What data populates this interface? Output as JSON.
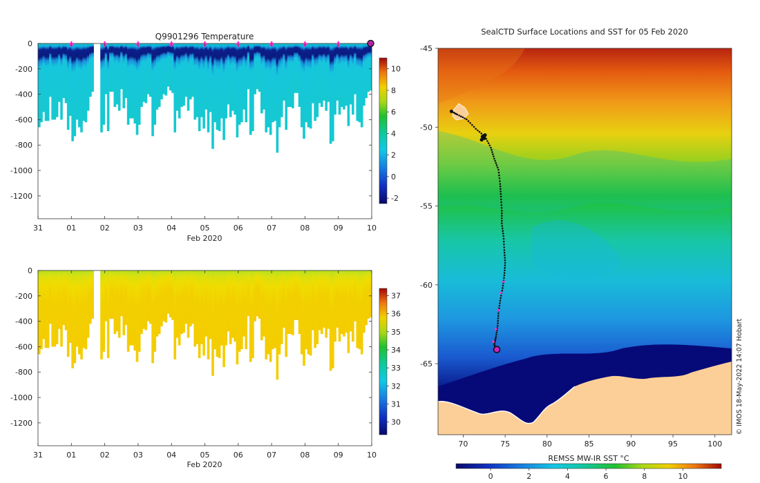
{
  "chart_data": [
    {
      "type": "heatmap",
      "id": "temperature_section",
      "title": "Q9901296  Temperature",
      "xlabel": "Feb 2020",
      "ylabel": "",
      "x_tick_labels": [
        "31",
        "01",
        "02",
        "03",
        "04",
        "05",
        "06",
        "07",
        "08",
        "09",
        "10"
      ],
      "x_range_days": [
        0,
        10
      ],
      "y_ticks": [
        0,
        -200,
        -400,
        -600,
        -800,
        -1000,
        -1200
      ],
      "ylim": [
        -1380,
        0
      ],
      "colorbar": {
        "ticks": [
          -2,
          0,
          2,
          4,
          6,
          8,
          10
        ],
        "range": [
          -2.5,
          11
        ]
      },
      "profile_depths": [
        -660,
        -620,
        -540,
        -610,
        -610,
        -420,
        -600,
        -600,
        -580,
        -460,
        -600,
        -430,
        -470,
        -680,
        -570,
        -770,
        -730,
        -600,
        -660,
        -700,
        -610,
        -620,
        -530,
        -420,
        -380,
        -410,
        -500,
        -410,
        -700,
        -640,
        -400,
        -690,
        -380,
        -380,
        -500,
        -480,
        -530,
        -360,
        -510,
        -430,
        -640,
        -590,
        -590,
        -630,
        -720,
        -640,
        -500,
        -460,
        -470,
        -400,
        -420,
        -730,
        -640,
        -520,
        -500,
        -440,
        -400,
        -410,
        -340,
        -370,
        -390,
        -700,
        -530,
        -590,
        -500,
        -490,
        -420,
        -530,
        -440,
        -420,
        -600,
        -580,
        -690,
        -580,
        -670,
        -520,
        -700,
        -540,
        -830,
        -620,
        -680,
        -690,
        -590,
        -760,
        -590,
        -480,
        -580,
        -530,
        -560,
        -740,
        -640,
        -620,
        -520,
        -620,
        -360,
        -720,
        -690,
        -400,
        -360,
        -380,
        -550,
        -520,
        -700,
        -660,
        -720,
        -620,
        -610,
        -860,
        -660,
        -580,
        -450,
        -680,
        -500,
        -500,
        -510,
        -390,
        -390,
        -500,
        -660,
        -750,
        -620,
        -660,
        -670,
        -470,
        -610,
        -580,
        -470,
        -500,
        -450,
        -530,
        -460,
        -790,
        -770,
        -560,
        -450,
        -560,
        -500,
        -520,
        -490,
        -650,
        -480,
        -560,
        -400,
        -610,
        -620,
        -660,
        -490,
        -430,
        -380,
        -370
      ],
      "gap_days": [
        [
          1.66,
          1.85
        ]
      ],
      "marker_days": [
        1,
        2,
        3,
        4,
        5,
        6,
        7,
        8,
        9
      ],
      "end_marker_day": 10
    },
    {
      "type": "heatmap",
      "id": "salinity_section",
      "title": "",
      "xlabel": "Feb 2020",
      "x_tick_labels": [
        "31",
        "01",
        "02",
        "03",
        "04",
        "05",
        "06",
        "07",
        "08",
        "09",
        "10"
      ],
      "y_ticks": [
        0,
        -200,
        -400,
        -600,
        -800,
        -1000,
        -1200
      ],
      "ylim": [
        -1380,
        0
      ],
      "colorbar": {
        "ticks": [
          30,
          31,
          32,
          33,
          34,
          35,
          36,
          37
        ],
        "range": [
          29.3,
          37.4
        ]
      }
    },
    {
      "type": "map",
      "id": "sst_map",
      "title": "SealCTD Surface Locations and SST for 05 Feb 2020",
      "x_ticks": [
        70,
        75,
        80,
        85,
        90,
        95,
        100
      ],
      "y_ticks": [
        -45,
        -50,
        -55,
        -60,
        -65
      ],
      "xlim": [
        67,
        102
      ],
      "ylim": [
        -69.5,
        -45
      ],
      "colorbar": {
        "label": "REMSS MW-IR SST °C",
        "ticks": [
          0,
          2,
          4,
          6,
          8,
          10
        ],
        "range": [
          -1.8,
          12
        ]
      },
      "track": [
        [
          68.6,
          -49.0
        ],
        [
          69.3,
          -49.2
        ],
        [
          70.4,
          -49.5
        ],
        [
          71.5,
          -50.1
        ],
        [
          72.6,
          -50.6
        ],
        [
          73.3,
          -51.3
        ],
        [
          73.7,
          -52.0
        ],
        [
          74.2,
          -52.7
        ],
        [
          74.4,
          -53.6
        ],
        [
          74.5,
          -54.4
        ],
        [
          74.6,
          -55.3
        ],
        [
          74.6,
          -56.1
        ],
        [
          74.8,
          -56.9
        ],
        [
          74.9,
          -57.8
        ],
        [
          75.0,
          -58.6
        ],
        [
          74.9,
          -59.4
        ],
        [
          74.7,
          -60.2
        ],
        [
          74.4,
          -61.0
        ],
        [
          74.2,
          -61.8
        ],
        [
          74.1,
          -62.6
        ],
        [
          73.9,
          -63.3
        ],
        [
          73.7,
          -63.8
        ],
        [
          74.0,
          -64.1
        ]
      ],
      "pink_points": [
        [
          74.8,
          -59.8
        ],
        [
          74.5,
          -60.5
        ],
        [
          74.2,
          -61.6
        ],
        [
          73.9,
          -62.8
        ],
        [
          73.6,
          -63.6
        ]
      ],
      "cluster_points": [
        [
          72.3,
          -50.6
        ],
        [
          72.5,
          -50.7
        ],
        [
          72.2,
          -50.8
        ],
        [
          72.6,
          -50.5
        ]
      ],
      "start_location": [
        68.6,
        -49.0
      ],
      "end_location": [
        74.0,
        -64.1
      ]
    }
  ],
  "credit": "© IMOS 18-May-2022 14:07 Hobart"
}
